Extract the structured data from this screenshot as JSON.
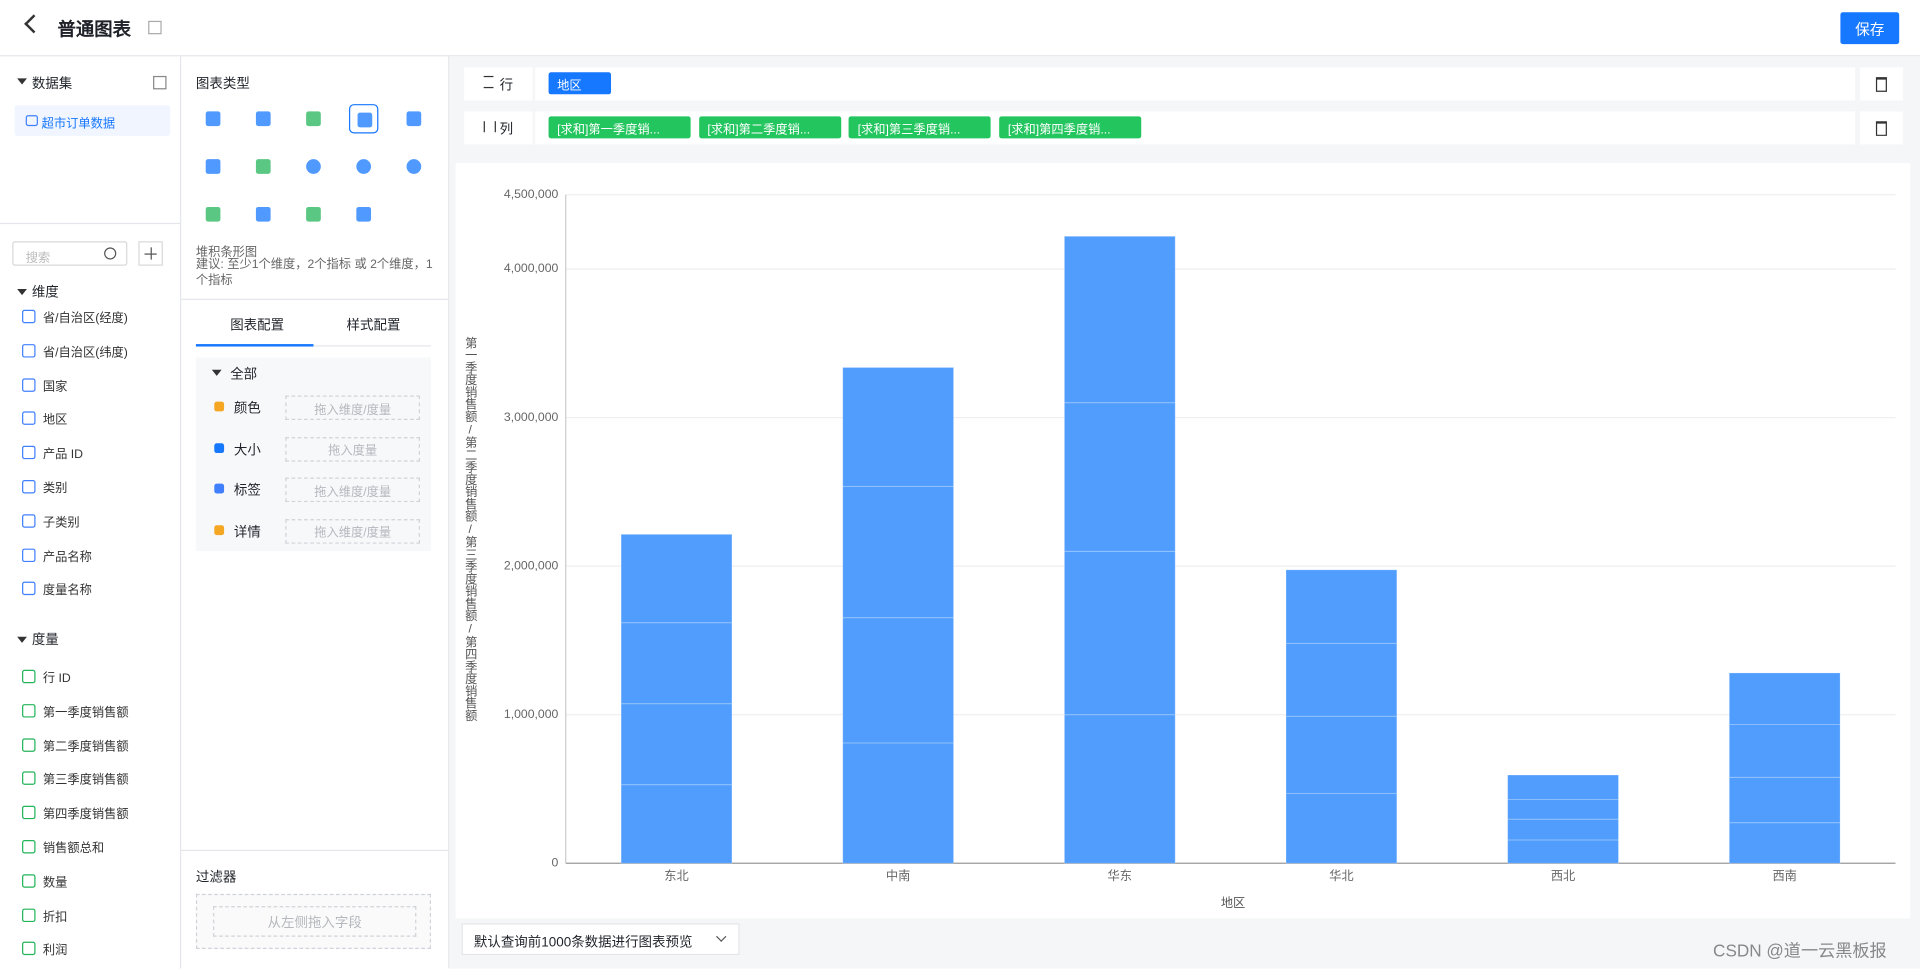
{
  "header": {
    "title": "普通图表",
    "save": "保存"
  },
  "dataset": {
    "title": "数据集",
    "item": "超市订单数据"
  },
  "search_placeholder": "搜索",
  "dimensions": {
    "title": "维度",
    "items": [
      "省/自治区(经度)",
      "省/自治区(纬度)",
      "国家",
      "地区",
      "产品 ID",
      "类别",
      "子类别",
      "产品名称",
      "度量名称"
    ]
  },
  "measures": {
    "title": "度量",
    "items": [
      "行 ID",
      "第一季度销售额",
      "第二季度销售额",
      "第三季度销售额",
      "第四季度销售额",
      "销售额总和",
      "数量",
      "折扣",
      "利润"
    ]
  },
  "chart_types": {
    "title": "图表类型",
    "selected_name": "堆积条形图",
    "hint": "建议: 至少1个维度，2个指标 或 2个维度，1个指标"
  },
  "config_tabs": [
    "图表配置",
    "样式配置"
  ],
  "config": {
    "group": "全部",
    "rows": [
      {
        "label": "颜色",
        "placeholder": "拖入维度/度量"
      },
      {
        "label": "大小",
        "placeholder": "拖入度量"
      },
      {
        "label": "标签",
        "placeholder": "拖入维度/度量"
      },
      {
        "label": "详情",
        "placeholder": "拖入维度/度量"
      }
    ]
  },
  "filter": {
    "title": "过滤器",
    "placeholder": "从左侧拖入字段"
  },
  "shelf": {
    "row_label": "行",
    "row_fields": [
      "地区"
    ],
    "col_label": "列",
    "col_fields": [
      "[求和]第一季度销...",
      "[求和]第二季度销...",
      "[求和]第三季度销...",
      "[求和]第四季度销..."
    ]
  },
  "preview": "默认查询前1000条数据进行图表预览",
  "watermark": "CSDN @道一云黑板报",
  "chart_data": {
    "type": "stacked_bar",
    "categories": [
      "东北",
      "中南",
      "华东",
      "华北",
      "西北",
      "西南"
    ],
    "series": [
      {
        "name": "第一季度销售额",
        "color": "#509dfd",
        "values": [
          529000,
          810000,
          1000000,
          470000,
          157000,
          273000
        ]
      },
      {
        "name": "第二季度销售额",
        "color": "#509dfd",
        "values": [
          545000,
          843000,
          1100000,
          520000,
          140000,
          306000
        ]
      },
      {
        "name": "第三季度销售额",
        "color": "#509dfd",
        "values": [
          545000,
          884000,
          1000000,
          490000,
          132000,
          355000
        ]
      },
      {
        "name": "第四季度销售额",
        "color": "#509dfd",
        "values": [
          595000,
          800000,
          1120000,
          495000,
          165000,
          347000
        ]
      }
    ],
    "ylim": [
      0,
      4500000
    ],
    "yticks": [
      0,
      {
        "value": 1000000,
        "label": "1,000,000"
      },
      {
        "value": 2000000,
        "label": "2,000,000"
      },
      {
        "value": 3000000,
        "label": "3,000,000"
      },
      {
        "value": 4000000,
        "label": "4,000,000"
      },
      {
        "value": 4500000,
        "label": "4,500,000"
      }
    ],
    "y_label": "第一季度销售额/第二季度销售额/第三季度销售额/第四季度销售额",
    "x_label": "地区",
    "grid": true
  }
}
